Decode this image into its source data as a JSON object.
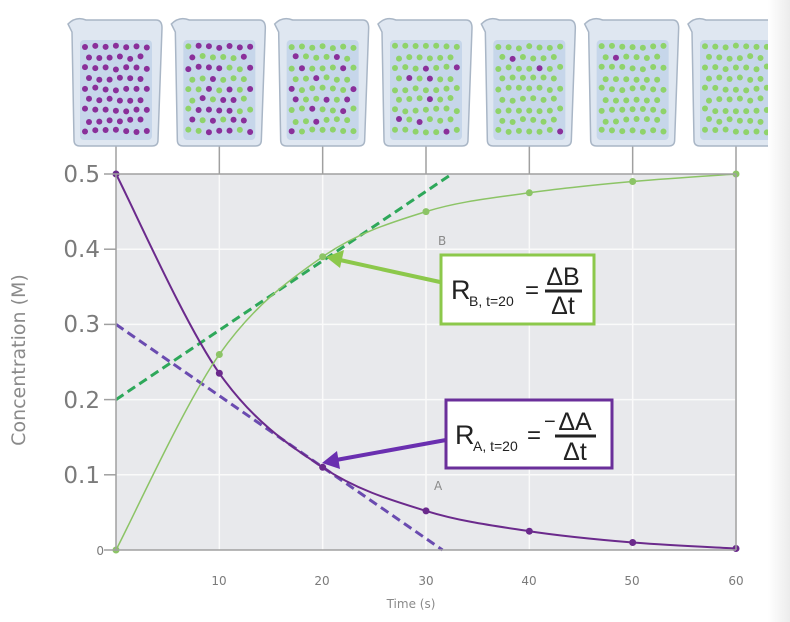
{
  "chart_data": {
    "type": "line",
    "title": "",
    "xlabel": "Time (s)",
    "ylabel": "Concentration (M)",
    "xlim": [
      0,
      60
    ],
    "ylim": [
      0,
      0.5
    ],
    "x_ticks": [
      "10",
      "20",
      "30",
      "40",
      "50",
      "60"
    ],
    "y_ticks": [
      "0",
      "0.1",
      "0.2",
      "0.3",
      "0.4",
      "0.5"
    ],
    "grid": true,
    "x": [
      0,
      10,
      20,
      30,
      40,
      50,
      60
    ],
    "series": [
      {
        "name": "A",
        "color": "#6b2a8c",
        "values": [
          0.5,
          0.235,
          0.11,
          0.052,
          0.025,
          0.01,
          0.002
        ]
      },
      {
        "name": "B",
        "color": "#8cc466",
        "values": [
          0,
          0.26,
          0.39,
          0.45,
          0.475,
          0.49,
          0.5
        ]
      }
    ],
    "tangents": [
      {
        "series": "B",
        "at_t": 20,
        "color": "#2ea85a",
        "points": [
          [
            0,
            0.2
          ],
          [
            32.5,
            0.5
          ]
        ]
      },
      {
        "series": "A",
        "at_t": 20,
        "color": "#6a4bb0",
        "points": [
          [
            0,
            0.3
          ],
          [
            31.6,
            0
          ]
        ]
      }
    ],
    "annotations": {
      "B": {
        "R": "R",
        "sub": "B, t=20",
        "eq": "=",
        "sign": "",
        "num": "ΔB",
        "den": "Δt",
        "border": "#8cc84b",
        "arrow": "#8cc84b"
      },
      "A": {
        "R": "R",
        "sub": "A, t=20",
        "eq": "=",
        "sign": "−",
        "num": "ΔA",
        "den": "Δt",
        "border": "#6a2f9a",
        "arrow": "#6a2fb0"
      }
    },
    "beakers": {
      "times": [
        0,
        10,
        20,
        30,
        40,
        50,
        60
      ],
      "colors": {
        "A": "#8a2f9a",
        "B": "#8fd36a"
      }
    }
  }
}
